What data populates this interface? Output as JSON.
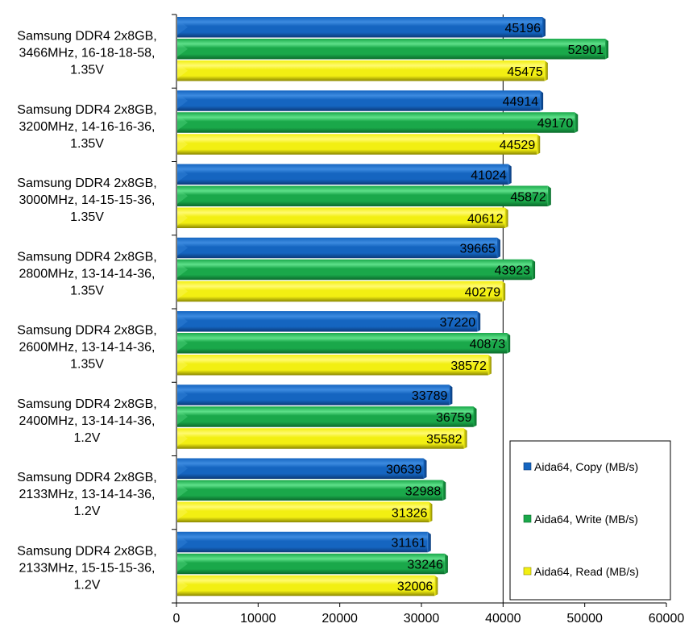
{
  "chart_data": {
    "type": "bar",
    "orientation": "horizontal",
    "title": "",
    "xlabel": "",
    "ylabel": "",
    "xlim": [
      0,
      60000
    ],
    "x_ticks": [
      0,
      10000,
      20000,
      30000,
      40000,
      50000,
      60000
    ],
    "x_tick_labels": [
      "0",
      "10000",
      "20000",
      "30000",
      "40000",
      "50000",
      "60000"
    ],
    "gridlines_at": [
      40000
    ],
    "categories": [
      [
        "Samsung DDR4 2x8GB,",
        "3466MHz, 16-18-18-58,",
        "1.35V"
      ],
      [
        "Samsung DDR4 2x8GB,",
        "3200MHz, 14-16-16-36,",
        "1.35V"
      ],
      [
        "Samsung DDR4 2x8GB,",
        "3000MHz, 14-15-15-36,",
        "1.35V"
      ],
      [
        "Samsung DDR4 2x8GB,",
        "2800MHz, 13-14-14-36,",
        "1.35V"
      ],
      [
        "Samsung DDR4 2x8GB,",
        "2600MHz, 13-14-14-36,",
        "1.35V"
      ],
      [
        "Samsung DDR4 2x8GB,",
        "2400MHz, 13-14-14-36,",
        "1.2V"
      ],
      [
        "Samsung DDR4 2x8GB,",
        "2133MHz, 13-14-14-36,",
        "1.2V"
      ],
      [
        "Samsung DDR4 2x8GB,",
        "2133MHz, 15-15-15-36,",
        "1.2V"
      ]
    ],
    "series": [
      {
        "name": "Aida64, Copy (MB/s)",
        "color": "#1565c0",
        "dark": "#0b3a78",
        "light": "#3d8be0",
        "values": [
          45196,
          44914,
          41024,
          39665,
          37220,
          33789,
          30639,
          31161
        ]
      },
      {
        "name": "Aida64, Write (MB/s)",
        "color": "#1aa84a",
        "dark": "#0b6a2c",
        "light": "#5fe08a",
        "values": [
          52901,
          49170,
          45872,
          43923,
          40873,
          36759,
          32988,
          33246
        ]
      },
      {
        "name": "Aida64, Read (MB/s)",
        "color": "#f2ef12",
        "dark": "#8a8600",
        "light": "#fffa70",
        "values": [
          45475,
          44529,
          40612,
          40279,
          38572,
          35582,
          31326,
          32006
        ]
      }
    ],
    "legend": "right-bottom",
    "grid": false
  }
}
